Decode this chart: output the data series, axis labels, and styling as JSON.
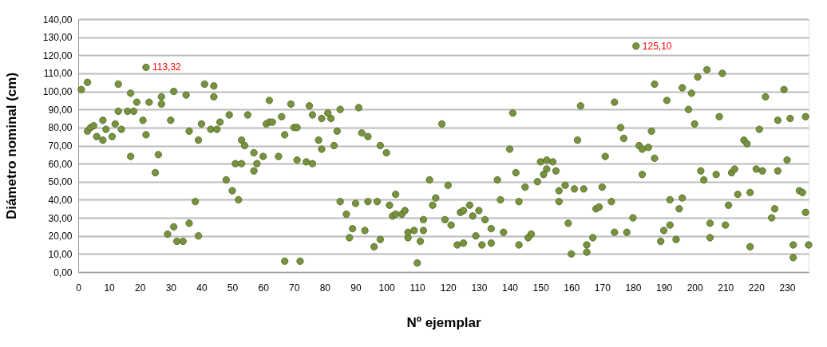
{
  "chart_data": {
    "type": "scatter",
    "xlabel": "Nº ejemplar",
    "ylabel": "Diámetro nominal (cm)",
    "xlim": [
      0,
      237
    ],
    "xticks": [
      0,
      10,
      20,
      30,
      40,
      50,
      60,
      70,
      80,
      90,
      100,
      110,
      120,
      130,
      140,
      150,
      160,
      170,
      180,
      190,
      200,
      210,
      220,
      230
    ],
    "ylim": [
      0,
      140
    ],
    "yticks": [
      {
        "value": 0,
        "label": "0,00"
      },
      {
        "value": 10,
        "label": "10,00"
      },
      {
        "value": 20,
        "label": "20,00"
      },
      {
        "value": 30,
        "label": "30,00"
      },
      {
        "value": 40,
        "label": "40,00"
      },
      {
        "value": 50,
        "label": "50,00"
      },
      {
        "value": 60,
        "label": "60,00"
      },
      {
        "value": 70,
        "label": "70,00"
      },
      {
        "value": 80,
        "label": "80,00"
      },
      {
        "value": 90,
        "label": "90,00"
      },
      {
        "value": 100,
        "label": "100,00"
      },
      {
        "value": 110,
        "label": "110,00"
      },
      {
        "value": 120,
        "label": "120,00"
      },
      {
        "value": 130,
        "label": "130,00"
      },
      {
        "value": 140,
        "label": "140,00"
      }
    ],
    "grid": "y",
    "marker": "circle",
    "annotations": [
      {
        "text": "113,32",
        "x": 22,
        "y": 113.32
      },
      {
        "text": "125,10",
        "x": 181,
        "y": 125.1
      }
    ],
    "series": [
      {
        "color": "#77933c",
        "x": [
          1,
          3,
          3,
          4,
          5,
          6,
          8,
          8,
          9,
          11,
          12,
          13,
          13,
          14,
          16,
          17,
          17,
          18,
          19,
          21,
          22,
          22,
          23,
          25,
          26,
          27,
          27,
          30,
          31,
          35,
          36,
          39,
          40,
          41,
          43,
          44,
          44,
          45,
          46,
          49,
          51,
          53,
          53,
          54,
          55,
          57,
          57,
          58,
          60,
          61,
          62,
          62,
          63,
          65,
          66,
          67,
          69,
          70,
          71,
          71,
          74,
          75,
          76,
          76,
          78,
          79,
          79,
          81,
          82,
          83,
          84,
          85,
          91,
          92,
          94,
          98,
          100,
          29,
          31,
          32,
          34,
          36,
          38,
          39,
          48,
          50,
          52,
          67,
          72,
          118,
          141,
          140,
          150,
          152,
          154,
          152,
          155,
          142,
          151,
          85,
          87,
          89,
          88,
          90,
          93,
          94,
          96,
          97,
          98,
          101,
          102,
          103,
          103,
          105,
          106,
          107,
          107,
          109,
          110,
          111,
          112,
          112,
          114,
          115,
          116,
          119,
          120,
          121,
          123,
          124,
          125,
          125,
          127,
          128,
          129,
          130,
          131,
          132,
          134,
          134,
          136,
          137,
          138,
          143,
          143,
          145,
          146,
          147,
          149,
          156,
          156,
          158,
          159,
          160,
          162,
          163,
          171,
          174,
          176,
          177,
          181,
          182,
          183,
          185,
          186,
          187,
          187,
          191,
          196,
          198,
          199,
          200,
          201,
          204,
          208,
          209,
          216,
          217,
          221,
          223,
          227,
          229,
          231,
          236,
          230,
          183,
          202,
          207,
          212,
          213,
          220,
          222,
          227,
          161,
          164,
          165,
          165,
          167,
          168,
          169,
          170,
          173,
          174,
          178,
          180,
          189,
          190,
          192,
          192,
          194,
          195,
          196,
          203,
          205,
          205,
          210,
          211,
          214,
          218,
          218,
          225,
          226,
          232,
          232,
          234,
          235,
          236,
          237
        ],
        "values": [
          101,
          105,
          78,
          80,
          81,
          75,
          84,
          73,
          79,
          75,
          82,
          104,
          89,
          79,
          89,
          99,
          64,
          89,
          94,
          84,
          76,
          113.32,
          94,
          55,
          65,
          97,
          93,
          84,
          100,
          98,
          78,
          73,
          82,
          104,
          79,
          103,
          97,
          79,
          83,
          87,
          60,
          60,
          73,
          70,
          87,
          56,
          66,
          60,
          64,
          82,
          83,
          95,
          83,
          64,
          86,
          76,
          93,
          80,
          80,
          62,
          61,
          92,
          60,
          87,
          73,
          85,
          68,
          88,
          85,
          70,
          78,
          90,
          91,
          77,
          75,
          70,
          66,
          21,
          25,
          17,
          17,
          27,
          39,
          20,
          51,
          45,
          40,
          6,
          6,
          82,
          88,
          68,
          61,
          62,
          61,
          57,
          56,
          55,
          54,
          39,
          32,
          24,
          19,
          38,
          23,
          39,
          14,
          39,
          18,
          37,
          31,
          32,
          43,
          32,
          34,
          19,
          22,
          23,
          5,
          17,
          29,
          23,
          51,
          37,
          41,
          29,
          48,
          26,
          15,
          33,
          34,
          16,
          37,
          31,
          20,
          34,
          15,
          29,
          24,
          16,
          51,
          40,
          22,
          15,
          39,
          47,
          19,
          21,
          50,
          45,
          39,
          48,
          27,
          10,
          73,
          92,
          64,
          94,
          80,
          74,
          125.1,
          70,
          68,
          69,
          78,
          104,
          63,
          95,
          102,
          90,
          99,
          82,
          108,
          112,
          86,
          110,
          73,
          71,
          79,
          97,
          84,
          101,
          85,
          86,
          62,
          54,
          56,
          54,
          55,
          57,
          57,
          56,
          56,
          46,
          46,
          15,
          11,
          19,
          35,
          36,
          47,
          39,
          22,
          22,
          30,
          17,
          23,
          40,
          26,
          18,
          35,
          41,
          51,
          19,
          27,
          26,
          37,
          43,
          14,
          44,
          30,
          35,
          15,
          8,
          45,
          44,
          33,
          15
        ]
      }
    ]
  }
}
